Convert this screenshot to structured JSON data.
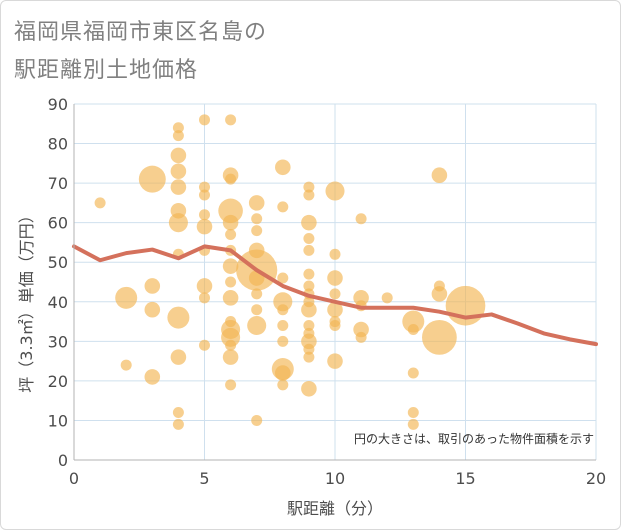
{
  "chart_data": {
    "type": "scatter",
    "title_line1": "福岡県福岡市東区名島の",
    "title_line2": "駅距離別土地価格",
    "xlabel": "駅距離（分）",
    "ylabel": "坪（3.3㎡）単価（万円）",
    "xlim": [
      0,
      20
    ],
    "ylim": [
      0,
      90
    ],
    "xticks": [
      0,
      5,
      10,
      15,
      20
    ],
    "yticks": [
      0,
      10,
      20,
      30,
      40,
      50,
      60,
      70,
      80,
      90
    ],
    "note": "円の大きさは、取引のあった物件面積を示す",
    "colors": {
      "bubble": "#f3b553",
      "line": "#d4715c",
      "grid": "#cfe0ee",
      "axis": "#b3b3b3"
    },
    "bubbles": [
      {
        "x": 1,
        "y": 65,
        "s": 1
      },
      {
        "x": 2,
        "y": 41,
        "s": 4
      },
      {
        "x": 2,
        "y": 24,
        "s": 1
      },
      {
        "x": 3,
        "y": 71,
        "s": 6
      },
      {
        "x": 3,
        "y": 44,
        "s": 2
      },
      {
        "x": 3,
        "y": 38,
        "s": 2
      },
      {
        "x": 3,
        "y": 21,
        "s": 2
      },
      {
        "x": 4,
        "y": 84,
        "s": 1
      },
      {
        "x": 4,
        "y": 82,
        "s": 1
      },
      {
        "x": 4,
        "y": 77,
        "s": 2
      },
      {
        "x": 4,
        "y": 73,
        "s": 2
      },
      {
        "x": 4,
        "y": 69,
        "s": 2
      },
      {
        "x": 4,
        "y": 63,
        "s": 2
      },
      {
        "x": 4,
        "y": 60,
        "s": 3
      },
      {
        "x": 4,
        "y": 52,
        "s": 1
      },
      {
        "x": 4,
        "y": 36,
        "s": 4
      },
      {
        "x": 4,
        "y": 26,
        "s": 2
      },
      {
        "x": 4,
        "y": 12,
        "s": 1
      },
      {
        "x": 4,
        "y": 9,
        "s": 1
      },
      {
        "x": 5,
        "y": 86,
        "s": 1
      },
      {
        "x": 5,
        "y": 69,
        "s": 1
      },
      {
        "x": 5,
        "y": 67,
        "s": 1
      },
      {
        "x": 5,
        "y": 62,
        "s": 1
      },
      {
        "x": 5,
        "y": 59,
        "s": 2
      },
      {
        "x": 5,
        "y": 53,
        "s": 1
      },
      {
        "x": 5,
        "y": 44,
        "s": 2
      },
      {
        "x": 5,
        "y": 41,
        "s": 1
      },
      {
        "x": 5,
        "y": 29,
        "s": 1
      },
      {
        "x": 6,
        "y": 86,
        "s": 1
      },
      {
        "x": 6,
        "y": 72,
        "s": 2
      },
      {
        "x": 6,
        "y": 71,
        "s": 1
      },
      {
        "x": 6,
        "y": 63,
        "s": 5
      },
      {
        "x": 6,
        "y": 60,
        "s": 2
      },
      {
        "x": 6,
        "y": 57,
        "s": 1
      },
      {
        "x": 6,
        "y": 53,
        "s": 1
      },
      {
        "x": 6,
        "y": 49,
        "s": 2
      },
      {
        "x": 6,
        "y": 45,
        "s": 1
      },
      {
        "x": 6,
        "y": 41,
        "s": 2
      },
      {
        "x": 6,
        "y": 35,
        "s": 1
      },
      {
        "x": 6,
        "y": 33,
        "s": 3
      },
      {
        "x": 6,
        "y": 31,
        "s": 3
      },
      {
        "x": 6,
        "y": 29,
        "s": 1
      },
      {
        "x": 6,
        "y": 26,
        "s": 2
      },
      {
        "x": 6,
        "y": 19,
        "s": 1
      },
      {
        "x": 7,
        "y": 65,
        "s": 2
      },
      {
        "x": 7,
        "y": 61,
        "s": 1
      },
      {
        "x": 7,
        "y": 58,
        "s": 1
      },
      {
        "x": 7,
        "y": 53,
        "s": 2
      },
      {
        "x": 7,
        "y": 48,
        "s": 14
      },
      {
        "x": 7,
        "y": 46,
        "s": 2
      },
      {
        "x": 7,
        "y": 42,
        "s": 1
      },
      {
        "x": 7,
        "y": 38,
        "s": 1
      },
      {
        "x": 7,
        "y": 34,
        "s": 3
      },
      {
        "x": 7,
        "y": 10,
        "s": 1
      },
      {
        "x": 8,
        "y": 74,
        "s": 2
      },
      {
        "x": 8,
        "y": 64,
        "s": 1
      },
      {
        "x": 8,
        "y": 46,
        "s": 1
      },
      {
        "x": 8,
        "y": 40,
        "s": 3
      },
      {
        "x": 8,
        "y": 38,
        "s": 1
      },
      {
        "x": 8,
        "y": 34,
        "s": 1
      },
      {
        "x": 8,
        "y": 30,
        "s": 1
      },
      {
        "x": 8,
        "y": 23,
        "s": 4
      },
      {
        "x": 8,
        "y": 22,
        "s": 2
      },
      {
        "x": 8,
        "y": 19,
        "s": 1
      },
      {
        "x": 9,
        "y": 69,
        "s": 1
      },
      {
        "x": 9,
        "y": 67,
        "s": 1
      },
      {
        "x": 9,
        "y": 60,
        "s": 2
      },
      {
        "x": 9,
        "y": 56,
        "s": 1
      },
      {
        "x": 9,
        "y": 53,
        "s": 1
      },
      {
        "x": 9,
        "y": 47,
        "s": 1
      },
      {
        "x": 9,
        "y": 44,
        "s": 1
      },
      {
        "x": 9,
        "y": 42,
        "s": 1
      },
      {
        "x": 9,
        "y": 40,
        "s": 1
      },
      {
        "x": 9,
        "y": 38,
        "s": 2
      },
      {
        "x": 9,
        "y": 34,
        "s": 1
      },
      {
        "x": 9,
        "y": 32,
        "s": 1
      },
      {
        "x": 9,
        "y": 30,
        "s": 2
      },
      {
        "x": 9,
        "y": 28,
        "s": 1
      },
      {
        "x": 9,
        "y": 26,
        "s": 1
      },
      {
        "x": 9,
        "y": 18,
        "s": 2
      },
      {
        "x": 10,
        "y": 68,
        "s": 3
      },
      {
        "x": 10,
        "y": 52,
        "s": 1
      },
      {
        "x": 10,
        "y": 46,
        "s": 2
      },
      {
        "x": 10,
        "y": 42,
        "s": 1
      },
      {
        "x": 10,
        "y": 38,
        "s": 2
      },
      {
        "x": 10,
        "y": 35,
        "s": 1
      },
      {
        "x": 10,
        "y": 34,
        "s": 1
      },
      {
        "x": 10,
        "y": 25,
        "s": 2
      },
      {
        "x": 11,
        "y": 61,
        "s": 1
      },
      {
        "x": 11,
        "y": 41,
        "s": 2
      },
      {
        "x": 11,
        "y": 39,
        "s": 1
      },
      {
        "x": 11,
        "y": 33,
        "s": 2
      },
      {
        "x": 11,
        "y": 31,
        "s": 1
      },
      {
        "x": 12,
        "y": 41,
        "s": 1
      },
      {
        "x": 13,
        "y": 35,
        "s": 4
      },
      {
        "x": 13,
        "y": 33,
        "s": 1
      },
      {
        "x": 13,
        "y": 22,
        "s": 1
      },
      {
        "x": 13,
        "y": 12,
        "s": 1
      },
      {
        "x": 13,
        "y": 9,
        "s": 1
      },
      {
        "x": 14,
        "y": 72,
        "s": 2
      },
      {
        "x": 14,
        "y": 44,
        "s": 1
      },
      {
        "x": 14,
        "y": 42,
        "s": 2
      },
      {
        "x": 14,
        "y": 31,
        "s": 10
      },
      {
        "x": 15,
        "y": 39,
        "s": 13
      }
    ],
    "line": {
      "x": [
        0,
        1,
        2,
        3,
        4,
        5,
        6,
        7,
        8,
        9,
        10,
        11,
        12,
        13,
        14,
        15,
        16,
        17,
        18,
        19,
        20
      ],
      "y": [
        54,
        50.5,
        52.3,
        53.2,
        51,
        54,
        53,
        48,
        44,
        41.5,
        40,
        38.5,
        38.5,
        38.5,
        37.5,
        36,
        36.8,
        34.5,
        32,
        30.5,
        29.3
      ]
    }
  }
}
